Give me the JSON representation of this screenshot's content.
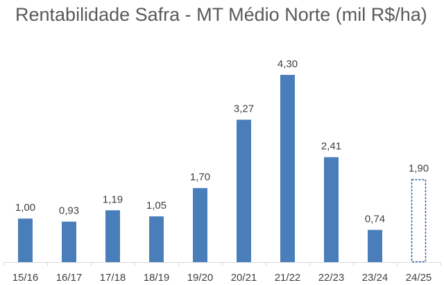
{
  "chart_data": {
    "type": "bar",
    "title": "Rentabilidade Safra - MT Médio Norte (mil R$/ha)",
    "xlabel": "",
    "ylabel": "",
    "categories": [
      "15/16",
      "16/17",
      "17/18",
      "18/19",
      "19/20",
      "20/21",
      "21/22",
      "22/23",
      "23/24",
      "24/25"
    ],
    "values": [
      1.0,
      0.93,
      1.19,
      1.05,
      1.7,
      3.27,
      4.3,
      2.41,
      0.74,
      1.9
    ],
    "data_labels": [
      "1,00",
      "0,93",
      "1,19",
      "1,05",
      "1,70",
      "3,27",
      "4,30",
      "2,41",
      "0,74",
      "1,90"
    ],
    "projected": [
      false,
      false,
      false,
      false,
      false,
      false,
      false,
      false,
      false,
      true
    ],
    "ylim": [
      0,
      4.5
    ],
    "grid": false,
    "legend": "none",
    "colors": {
      "bar": "#4a7ebb",
      "projected_bar_border": "#2e5f99",
      "axis": "#d9d9d9",
      "text": "#404040",
      "title": "#595959"
    }
  }
}
